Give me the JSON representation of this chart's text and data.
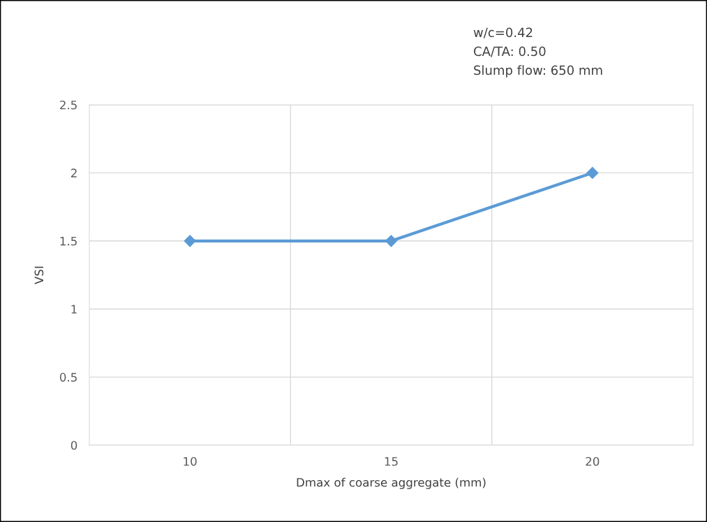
{
  "chart_data": {
    "type": "line",
    "xlabel": "Dmax of coarse aggregate (mm)",
    "ylabel": "VSI",
    "categories": [
      "10",
      "15",
      "20"
    ],
    "series": [
      {
        "color": "#5b9bd5",
        "values": [
          1.5,
          1.5,
          2
        ]
      }
    ],
    "ylim": [
      0,
      2.5
    ],
    "yticks": [
      0,
      0.5,
      1,
      1.5,
      2,
      2.5
    ],
    "grid": true,
    "marker": "diamond",
    "line_style": "solid",
    "annotations": [
      "w/c=0.42",
      "CA/TA: 0.50",
      "Slump flow: 650 mm"
    ]
  }
}
